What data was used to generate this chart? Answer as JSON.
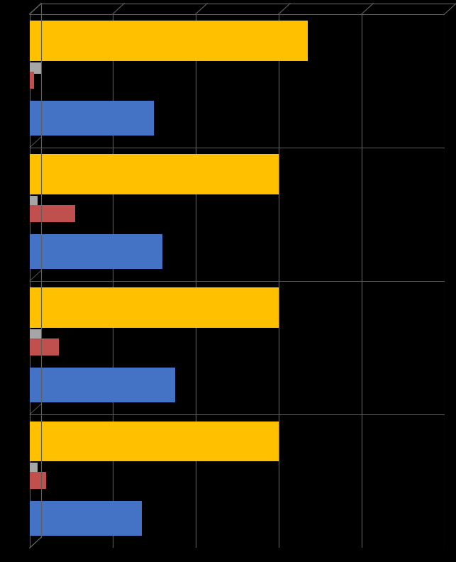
{
  "groups": [
    {
      "yellow": 67,
      "gray": 3,
      "orange": 1,
      "blue": 30
    },
    {
      "yellow": 60,
      "gray": 2,
      "orange": 11,
      "blue": 32
    },
    {
      "yellow": 60,
      "gray": 3,
      "orange": 7,
      "blue": 35
    },
    {
      "yellow": 60,
      "gray": 2,
      "orange": 4,
      "blue": 27
    }
  ],
  "yellow_color": "#FFC000",
  "gray_color": "#A6A6A6",
  "orange_color": "#C0504D",
  "blue_color": "#4472C4",
  "bg_color": "#000000",
  "grid_color": "#606060",
  "xlim_max": 100,
  "fw": 6.43,
  "fh": 7.92,
  "dpi": 100
}
